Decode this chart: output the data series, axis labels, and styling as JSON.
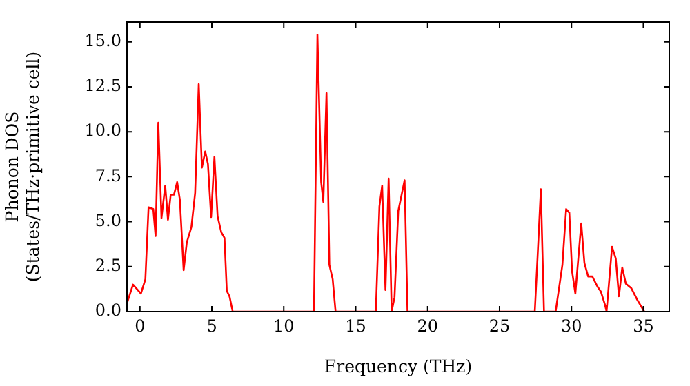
{
  "chart_data": {
    "type": "line",
    "xlabel": "Frequency (THz)",
    "ylabel": "Phonon DOS\n(States/THz·primitive cell)",
    "x": [
      -0.9,
      -0.48,
      0.07,
      0.38,
      0.6,
      0.93,
      1.09,
      1.28,
      1.5,
      1.76,
      1.95,
      2.14,
      2.37,
      2.59,
      2.78,
      3.04,
      3.26,
      3.58,
      3.84,
      4.09,
      4.31,
      4.54,
      4.73,
      4.95,
      5.18,
      5.4,
      5.66,
      5.88,
      6.04,
      6.23,
      6.45,
      12.1,
      12.34,
      12.6,
      12.75,
      12.97,
      13.17,
      13.4,
      13.6,
      16.4,
      16.65,
      16.84,
      17.07,
      17.29,
      17.5,
      17.7,
      17.96,
      18.4,
      18.6,
      27.45,
      27.64,
      27.87,
      28.09,
      28.9,
      29.37,
      29.63,
      29.85,
      30.04,
      30.27,
      30.68,
      30.9,
      31.16,
      31.45,
      31.8,
      32.05,
      32.34,
      32.44,
      32.82,
      33.08,
      33.3,
      33.53,
      33.78,
      34.16,
      34.58,
      35.06
    ],
    "series": [
      {
        "color": "#ff0000",
        "values": [
          0.46,
          1.5,
          1.0,
          1.8,
          5.8,
          5.7,
          4.2,
          10.5,
          5.2,
          7.0,
          5.1,
          6.5,
          6.5,
          7.2,
          6.2,
          2.3,
          3.85,
          4.7,
          6.6,
          12.65,
          8.0,
          8.9,
          8.2,
          5.25,
          8.6,
          5.3,
          4.4,
          4.1,
          1.15,
          0.84,
          0,
          0,
          15.4,
          7.2,
          6.1,
          12.15,
          2.6,
          1.8,
          0,
          0,
          5.85,
          7.0,
          1.2,
          7.4,
          0,
          0.8,
          5.6,
          7.3,
          0,
          0,
          3.0,
          6.8,
          0,
          0,
          2.6,
          5.7,
          5.5,
          2.25,
          1.0,
          4.9,
          2.7,
          1.95,
          1.95,
          1.4,
          1.1,
          0.35,
          0,
          3.6,
          2.95,
          0.85,
          2.45,
          1.55,
          1.3,
          0.65,
          0
        ]
      }
    ],
    "xlim": [
      -0.9,
      36.8
    ],
    "xticks": [
      0,
      5,
      10,
      15,
      20,
      25,
      30,
      35
    ],
    "ylim": [
      0,
      16.1
    ],
    "yticks": [
      {
        "value": 0,
        "label": "0.0"
      },
      {
        "value": 2.5,
        "label": "2.5"
      },
      {
        "value": 5,
        "label": "5.0"
      },
      {
        "value": 7.5,
        "label": "7.5"
      },
      {
        "value": 10,
        "label": "10.0"
      },
      {
        "value": 12.5,
        "label": "12.5"
      },
      {
        "value": 15,
        "label": "15.0"
      }
    ],
    "grid": false,
    "legend": false,
    "marker": "none",
    "line_style": "solid"
  }
}
